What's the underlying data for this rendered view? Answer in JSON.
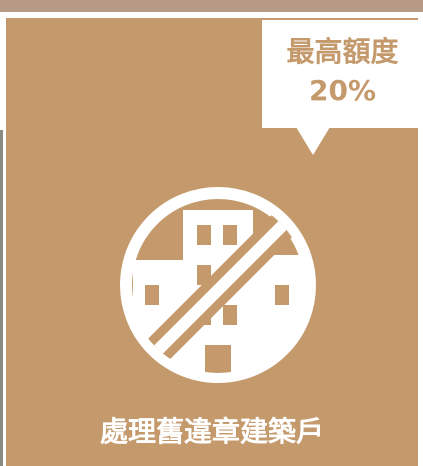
{
  "badge": {
    "line1": "最高額度",
    "line2": "20%"
  },
  "caption": "處理舊違章建築戶"
}
